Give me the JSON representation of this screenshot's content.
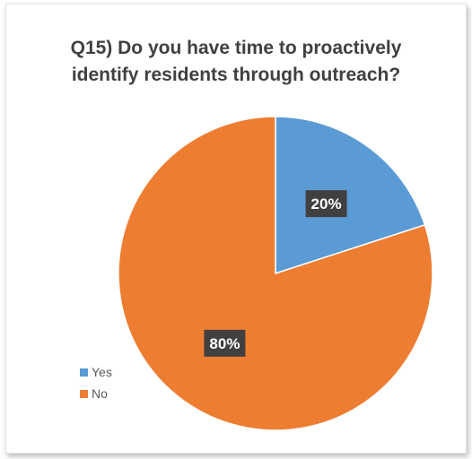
{
  "chart_data": {
    "type": "pie",
    "title_lines": [
      "Q15) Do you have time to proactively",
      "identify residents through outreach?"
    ],
    "categories": [
      "Yes",
      "No"
    ],
    "values": [
      20,
      80
    ],
    "data_labels": [
      "20%",
      "80%"
    ],
    "colors": [
      "#5b9bd5",
      "#ed7d31"
    ],
    "legend_position": "bottom-left"
  }
}
